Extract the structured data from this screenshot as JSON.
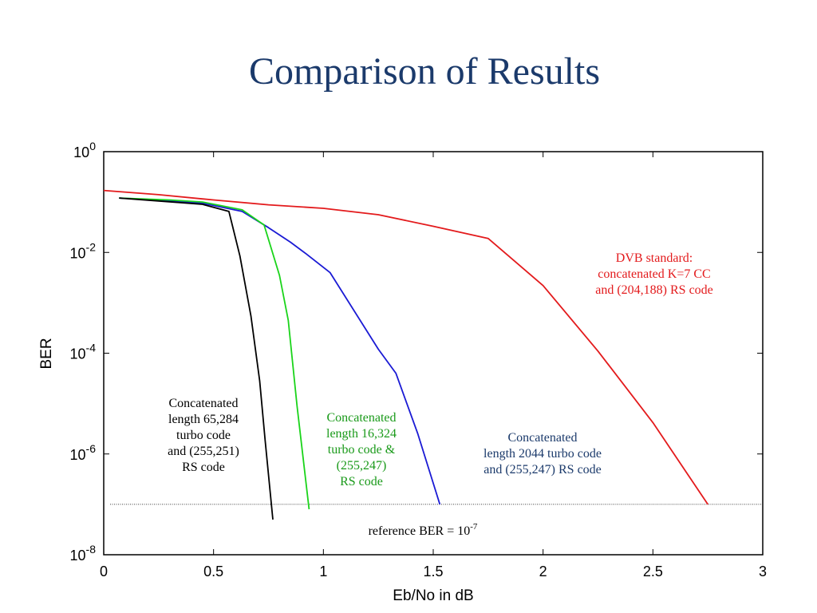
{
  "slide_title": "Comparison of Results",
  "chart_data": {
    "type": "line",
    "xlabel": "Eb/No in dB",
    "ylabel": "BER",
    "xlim": [
      0,
      3
    ],
    "ylim_log10": [
      -8,
      0
    ],
    "y_scale": "log",
    "grid": false,
    "x_ticks": [
      "0",
      "0.5",
      "1",
      "1.5",
      "2",
      "2.5",
      "3"
    ],
    "x_tick_values": [
      0,
      0.5,
      1,
      1.5,
      2,
      2.5,
      3
    ],
    "y_ticks": [
      {
        "base": "10",
        "exp": "0",
        "value": 1
      },
      {
        "base": "10",
        "exp": "-2",
        "value": 0.01
      },
      {
        "base": "10",
        "exp": "-4",
        "value": 0.0001
      },
      {
        "base": "10",
        "exp": "-6",
        "value": 1e-06
      },
      {
        "base": "10",
        "exp": "-8",
        "value": 1e-08
      }
    ],
    "series": [
      {
        "color": "#e31a1c",
        "label_lines": [
          "DVB standard:",
          "concatenated K=7 CC",
          "and  (204,188) RS code"
        ],
        "points": [
          [
            0,
            0.17
          ],
          [
            0.25,
            0.14
          ],
          [
            0.5,
            0.11
          ],
          [
            0.75,
            0.088
          ],
          [
            1.0,
            0.075
          ],
          [
            1.25,
            0.056
          ],
          [
            1.5,
            0.033
          ],
          [
            1.75,
            0.019
          ],
          [
            2.0,
            0.0022
          ],
          [
            2.25,
            0.00011
          ],
          [
            2.5,
            4.2e-06
          ],
          [
            2.75,
            1e-07
          ]
        ]
      },
      {
        "color": "#1a1ad4",
        "label_lines": [
          "Concatenated",
          "length 2044 turbo code",
          "and (255,247) RS code"
        ],
        "points": [
          [
            0.07,
            0.12
          ],
          [
            0.25,
            0.11
          ],
          [
            0.45,
            0.095
          ],
          [
            0.63,
            0.065
          ],
          [
            0.75,
            0.031
          ],
          [
            0.85,
            0.016
          ],
          [
            0.92,
            0.0095
          ],
          [
            1.03,
            0.004
          ],
          [
            1.25,
            0.00012
          ],
          [
            1.33,
            4e-05
          ],
          [
            1.43,
            2.5e-06
          ],
          [
            1.53,
            1e-07
          ]
        ]
      },
      {
        "color": "#1ad41a",
        "label_lines": [
          "Concatenated",
          "length 16,324",
          "turbo code &",
          "(255,247)",
          "RS code"
        ],
        "points": [
          [
            0.07,
            0.12
          ],
          [
            0.3,
            0.11
          ],
          [
            0.45,
            0.1
          ],
          [
            0.63,
            0.07
          ],
          [
            0.73,
            0.035
          ],
          [
            0.8,
            0.0035
          ],
          [
            0.84,
            0.00045
          ],
          [
            0.88,
            9e-06
          ],
          [
            0.935,
            8e-08
          ]
        ]
      },
      {
        "color": "#000000",
        "label_lines": [
          "Concatenated",
          "length 65,284",
          "turbo code",
          "and  (255,251)",
          "RS code"
        ],
        "points": [
          [
            0.07,
            0.12
          ],
          [
            0.25,
            0.105
          ],
          [
            0.45,
            0.09
          ],
          [
            0.57,
            0.065
          ],
          [
            0.62,
            0.0085
          ],
          [
            0.67,
            0.00055
          ],
          [
            0.71,
            2.8e-05
          ],
          [
            0.735,
            1.8e-06
          ],
          [
            0.77,
            5e-08
          ]
        ]
      }
    ],
    "reference_line": {
      "value": 1e-07,
      "label_text": "reference BER = 10",
      "label_exp": "-7"
    }
  }
}
